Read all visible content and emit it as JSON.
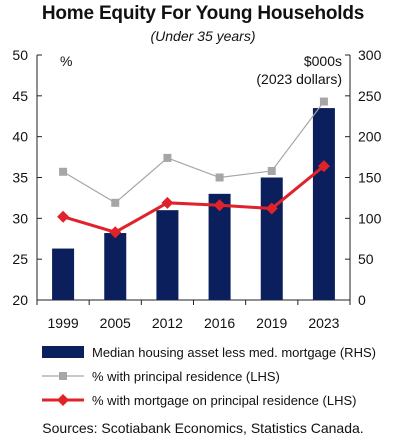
{
  "chart_data": {
    "type": "bar",
    "title": "Home Equity For Young Households",
    "subtitle": "(Under 35 years)",
    "categories": [
      "1999",
      "2005",
      "2012",
      "2016",
      "2019",
      "2023"
    ],
    "left_axis": {
      "unit_label": "%",
      "ylim": [
        20,
        50
      ],
      "ticks": [
        20,
        25,
        30,
        35,
        40,
        45,
        50
      ]
    },
    "right_axis": {
      "unit_label": "$000s",
      "unit_label_2": "(2023 dollars)",
      "ylim": [
        0,
        300
      ],
      "ticks": [
        0,
        50,
        100,
        150,
        200,
        250,
        300
      ]
    },
    "series": [
      {
        "name": "Median housing asset less med. mortgage (RHS)",
        "type": "bar",
        "axis": "right",
        "color": "#0b1f5c",
        "values": [
          63,
          82,
          110,
          130,
          150,
          235
        ]
      },
      {
        "name": "% with principal residence (LHS)",
        "type": "line",
        "axis": "left",
        "color": "#a6a6a6",
        "marker": "square",
        "values": [
          35.7,
          31.9,
          37.4,
          35.0,
          35.8,
          44.3
        ]
      },
      {
        "name": "% with mortgage on principal residence (LHS)",
        "type": "line",
        "axis": "left",
        "color": "#e0232a",
        "marker": "diamond",
        "values": [
          30.2,
          28.3,
          31.9,
          31.6,
          31.2,
          36.4
        ]
      }
    ],
    "grid": false,
    "legend_position": "bottom"
  },
  "sources": "Sources: Scotiabank Economics, Statistics Canada."
}
